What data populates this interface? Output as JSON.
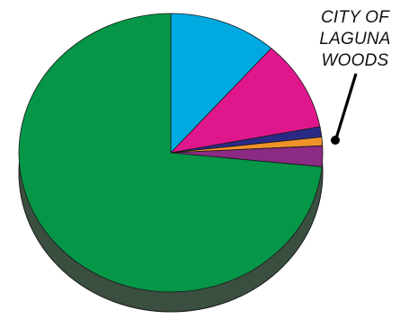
{
  "chart_data": {
    "type": "pie",
    "title": "",
    "style": "3d-disc-with-side-shadow",
    "slices": [
      {
        "value": 11.5,
        "color": "#00a9df"
      },
      {
        "value": 10.5,
        "color": "#e0168d"
      },
      {
        "value": 1.2,
        "color": "#2a2a86"
      },
      {
        "value": 1.0,
        "color": "#f0922a"
      },
      {
        "value": 2.4,
        "color": "#8b2b84"
      },
      {
        "value": 73.4,
        "color": "#069647"
      }
    ],
    "callout": {
      "lines": [
        "CITY OF",
        "LAGUNA",
        "WOODS"
      ],
      "slice_index": 3
    },
    "colors": {
      "side_shadow": "#3a4f40",
      "outline": "#1a1a1a",
      "leader": "#000000"
    }
  }
}
